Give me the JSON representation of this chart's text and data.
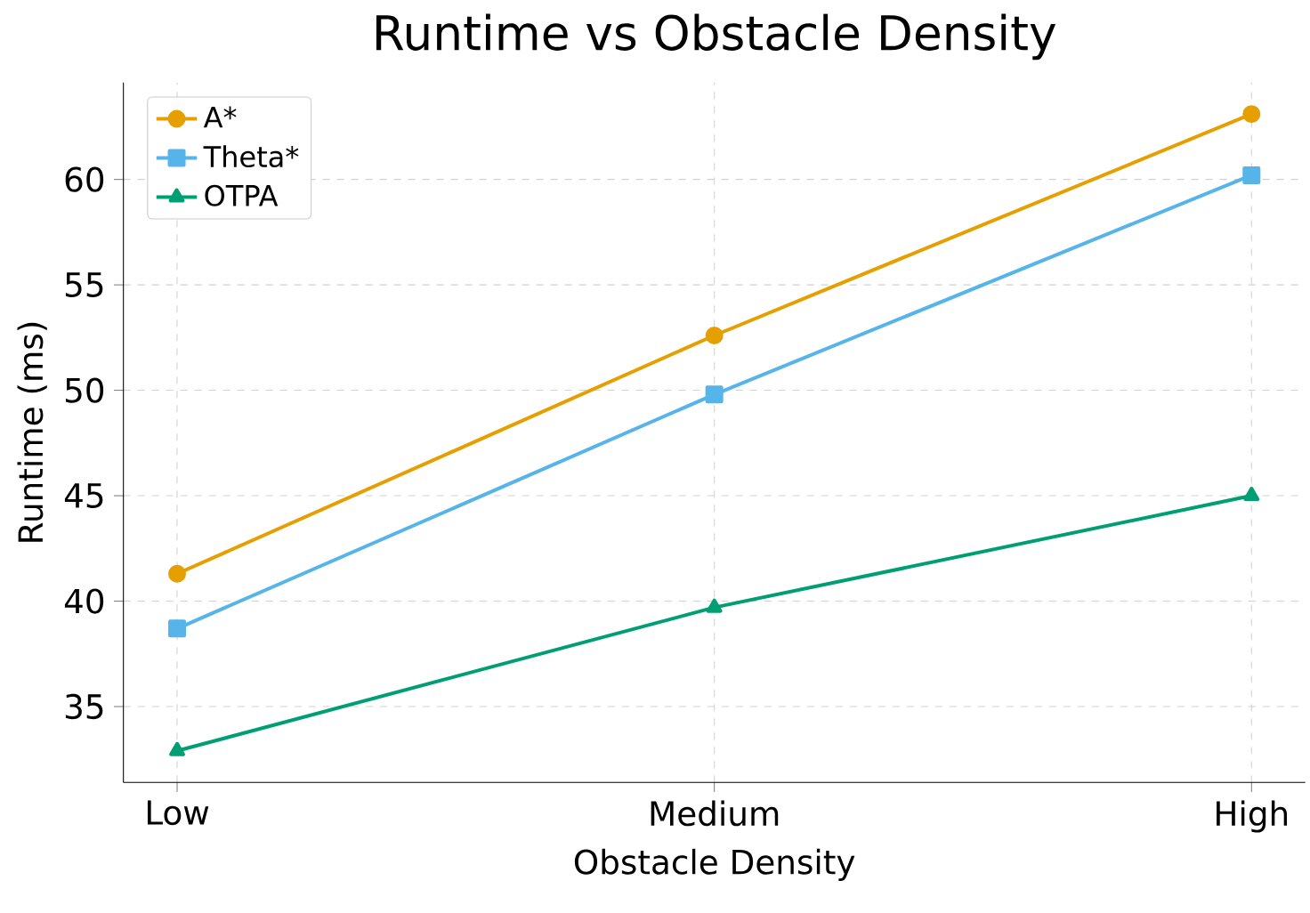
{
  "chart_data": {
    "type": "line",
    "title": "Runtime vs Obstacle Density",
    "xlabel": "Obstacle Density",
    "ylabel": "Runtime (ms)",
    "categories": [
      "Low",
      "Medium",
      "High"
    ],
    "series": [
      {
        "name": "A*",
        "color": "#e69f00",
        "marker": "circle",
        "values": [
          41.3,
          52.6,
          63.1
        ]
      },
      {
        "name": "Theta*",
        "color": "#56b4e9",
        "marker": "square",
        "values": [
          38.7,
          49.8,
          60.2
        ]
      },
      {
        "name": "OTPA",
        "color": "#009e73",
        "marker": "triangle",
        "values": [
          32.9,
          39.7,
          45.0
        ]
      }
    ],
    "ylim": [
      31.4,
      64.6
    ],
    "yticks": [
      35,
      40,
      45,
      50,
      55,
      60
    ],
    "grid": true,
    "legend": "top left",
    "line_style": "solid"
  }
}
